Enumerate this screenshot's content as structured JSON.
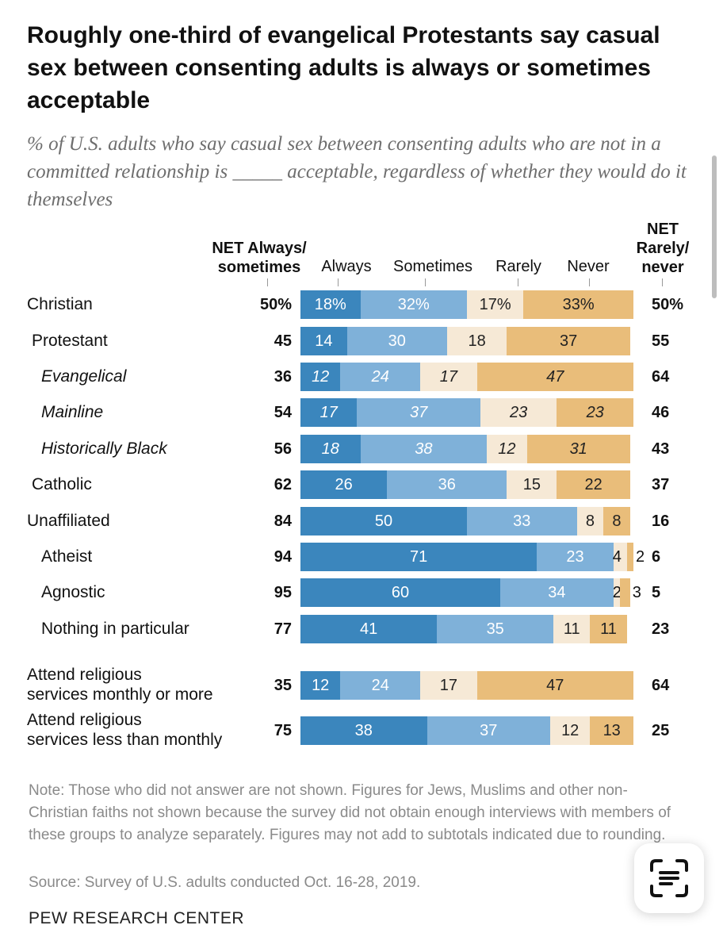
{
  "title": "Roughly one-third of evangelical Protestants say casual sex between consenting adults is always or sometimes acceptable",
  "subtitle": "% of U.S. adults who say casual sex between consenting adults who are not in a committed relationship is _____ acceptable, regardless of whether they would do it themselves",
  "headers": {
    "net_left_1": "NET Always/",
    "net_left_2": "sometimes",
    "always": "Always",
    "sometimes": "Sometimes",
    "rarely": "Rarely",
    "never": "Never",
    "net_right_1": "NET",
    "net_right_2": "Rarely/",
    "net_right_3": "never"
  },
  "colors": {
    "always": "#3b86bd",
    "sometimes": "#7fb1d9",
    "rarely": "#f6e9d6",
    "never": "#e9bd7a"
  },
  "chart_data": {
    "type": "bar",
    "stacked": true,
    "orientation": "horizontal",
    "title": "Roughly one-third of evangelical Protestants say casual sex between consenting adults is always or sometimes acceptable",
    "categories": [
      "Christian",
      "Protestant",
      "Evangelical",
      "Mainline",
      "Historically Black",
      "Catholic",
      "Unaffiliated",
      "Atheist",
      "Agnostic",
      "Nothing in particular",
      "Attend religious services monthly or more",
      "Attend religious services less than monthly"
    ],
    "series": [
      {
        "name": "Always",
        "values": [
          18,
          14,
          12,
          17,
          18,
          26,
          50,
          71,
          60,
          41,
          12,
          38
        ]
      },
      {
        "name": "Sometimes",
        "values": [
          32,
          30,
          24,
          37,
          38,
          36,
          33,
          23,
          34,
          35,
          24,
          37
        ]
      },
      {
        "name": "Rarely",
        "values": [
          17,
          18,
          17,
          23,
          12,
          15,
          8,
          4,
          2,
          11,
          17,
          12
        ]
      },
      {
        "name": "Never",
        "values": [
          33,
          37,
          47,
          23,
          31,
          22,
          8,
          2,
          3,
          11,
          47,
          13
        ]
      }
    ],
    "net_always_sometimes": [
      "50%",
      "45",
      "36",
      "54",
      "56",
      "62",
      "84",
      "94",
      "95",
      "77",
      "35",
      "75"
    ],
    "net_rarely_never": [
      "50%",
      "55",
      "64",
      "46",
      "43",
      "37",
      "16",
      "6",
      "5",
      "23",
      "64",
      "25"
    ],
    "rows": [
      {
        "label": "Christian",
        "style": "normal",
        "labels": [
          "18%",
          "32%",
          "17%",
          "33%"
        ]
      },
      {
        "label": "Protestant",
        "style": "normal",
        "labels": [
          "14",
          "30",
          "18",
          "37"
        ]
      },
      {
        "label": "Evangelical",
        "style": "italic",
        "labels": [
          "12",
          "24",
          "17",
          "47"
        ]
      },
      {
        "label": "Mainline",
        "style": "italic",
        "labels": [
          "17",
          "37",
          "23",
          "23"
        ]
      },
      {
        "label": "Historically Black",
        "style": "italic",
        "labels": [
          "18",
          "38",
          "12",
          "31"
        ]
      },
      {
        "label": "Catholic",
        "style": "normal",
        "labels": [
          "26",
          "36",
          "15",
          "22"
        ]
      },
      {
        "label": "Unaffiliated",
        "style": "normal",
        "labels": [
          "50",
          "33",
          "8",
          "8"
        ]
      },
      {
        "label": "Atheist",
        "style": "normal",
        "labels": [
          "71",
          "23",
          "4",
          "2"
        ]
      },
      {
        "label": "Agnostic",
        "style": "normal",
        "labels": [
          "60",
          "34",
          "2",
          "3"
        ]
      },
      {
        "label": "Nothing in particular",
        "style": "normal",
        "labels": [
          "41",
          "35",
          "11",
          "11"
        ]
      },
      {
        "label": "Attend religious services monthly or more",
        "label_lines": [
          "Attend religious",
          "services monthly or more"
        ],
        "style": "normal",
        "labels": [
          "12",
          "24",
          "17",
          "47"
        ]
      },
      {
        "label": "Attend religious services less than monthly",
        "label_lines": [
          "Attend religious",
          "services less than monthly"
        ],
        "style": "normal",
        "labels": [
          "38",
          "37",
          "12",
          "13"
        ]
      }
    ],
    "xlim": [
      0,
      100
    ],
    "legend": "column headers above bars"
  },
  "note": "Note: Those who did not answer are not shown. Figures for Jews, Muslims and other non-Christian faiths not shown because the survey did not obtain enough interviews with members of these groups to analyze separately. Figures may not add to subtotals indicated due to rounding.",
  "source": "Source: Survey of U.S. adults conducted Oct. 16-28, 2019.",
  "brand": "PEW RESEARCH CENTER",
  "scan_button_icon": "text-scan-icon"
}
